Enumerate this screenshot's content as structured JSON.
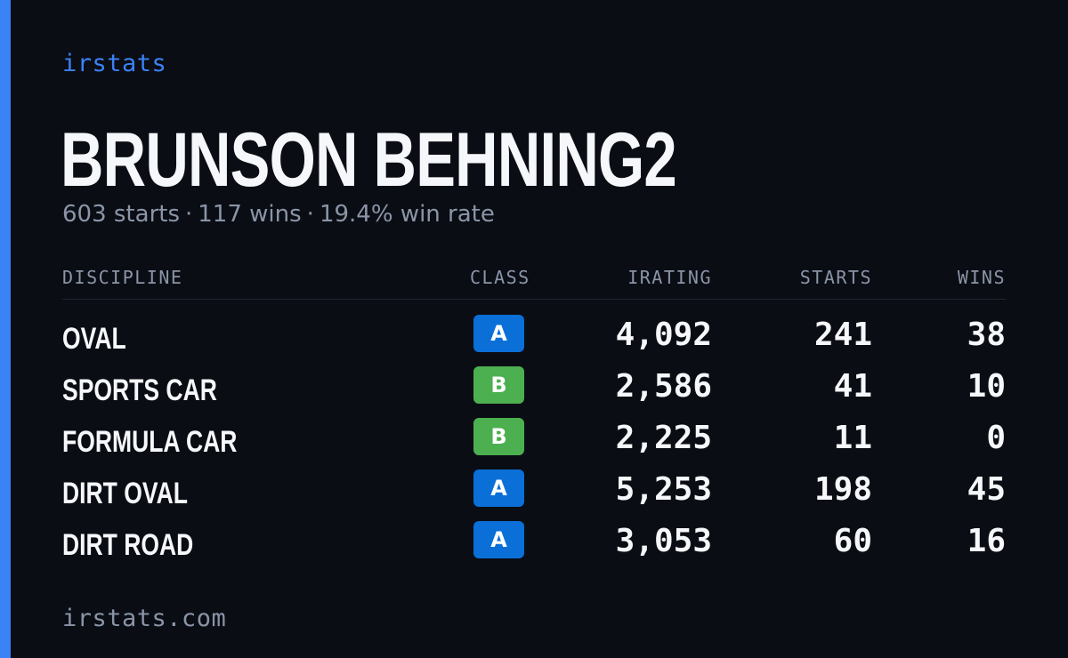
{
  "brand": "irstats",
  "driver": {
    "name": "BRUNSON BEHNING2",
    "starts_text": "603 starts",
    "wins_text": "117 wins",
    "win_rate_text": "19.4% win rate",
    "separator": "·"
  },
  "table": {
    "headers": {
      "discipline": "DISCIPLINE",
      "class": "CLASS",
      "irating": "IRATING",
      "starts": "STARTS",
      "wins": "WINS"
    },
    "rows": [
      {
        "discipline": "OVAL",
        "class": "A",
        "class_color": "#0b6fd8",
        "irating": "4,092",
        "starts": "241",
        "wins": "38"
      },
      {
        "discipline": "SPORTS CAR",
        "class": "B",
        "class_color": "#4caf50",
        "irating": "2,586",
        "starts": "41",
        "wins": "10"
      },
      {
        "discipline": "FORMULA CAR",
        "class": "B",
        "class_color": "#4caf50",
        "irating": "2,225",
        "starts": "11",
        "wins": "0"
      },
      {
        "discipline": "DIRT OVAL",
        "class": "A",
        "class_color": "#0b6fd8",
        "irating": "5,253",
        "starts": "198",
        "wins": "45"
      },
      {
        "discipline": "DIRT ROAD",
        "class": "A",
        "class_color": "#0b6fd8",
        "irating": "3,053",
        "starts": "60",
        "wins": "16"
      }
    ]
  },
  "footer": {
    "url": "irstats.com"
  },
  "colors": {
    "background": "#0a0d14",
    "accent": "#3b82f6",
    "text_primary": "#f5f7fa",
    "text_muted": "#8b95a7",
    "class_a": "#0b6fd8",
    "class_b": "#4caf50"
  }
}
